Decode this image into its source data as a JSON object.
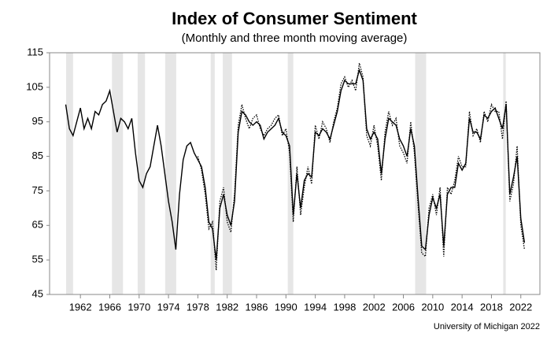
{
  "chart_data": {
    "type": "line",
    "title": "Index of Consumer Sentiment",
    "subtitle": "(Monthly and three month moving average)",
    "source": "University of Michigan 2022",
    "x": [
      1960,
      1960.5,
      1961,
      1961.5,
      1962,
      1962.5,
      1963,
      1963.5,
      1964,
      1964.5,
      1965,
      1965.5,
      1966,
      1966.5,
      1967,
      1967.5,
      1968,
      1968.5,
      1969,
      1969.5,
      1970,
      1970.5,
      1971,
      1971.5,
      1972,
      1972.5,
      1973,
      1973.5,
      1974,
      1974.5,
      1975,
      1975.5,
      1976,
      1976.5,
      1977,
      1977.5,
      1978,
      1978.5,
      1979,
      1979.5,
      1980,
      1980.5,
      1981,
      1981.5,
      1982,
      1982.5,
      1983,
      1983.5,
      1984,
      1984.5,
      1985,
      1985.5,
      1986,
      1986.5,
      1987,
      1987.5,
      1988,
      1988.5,
      1989,
      1989.5,
      1990,
      1990.5,
      1991,
      1991.5,
      1992,
      1992.5,
      1993,
      1993.5,
      1994,
      1994.5,
      1995,
      1995.5,
      1996,
      1996.5,
      1997,
      1997.5,
      1998,
      1998.5,
      1999,
      1999.5,
      2000,
      2000.5,
      2001,
      2001.5,
      2002,
      2002.5,
      2003,
      2003.5,
      2004,
      2004.5,
      2005,
      2005.5,
      2006,
      2006.5,
      2007,
      2007.5,
      2008,
      2008.5,
      2009,
      2009.5,
      2010,
      2010.5,
      2011,
      2011.5,
      2012,
      2012.5,
      2013,
      2013.5,
      2014,
      2014.5,
      2015,
      2015.5,
      2016,
      2016.5,
      2017,
      2017.5,
      2018,
      2018.5,
      2019,
      2019.5,
      2020,
      2020.5,
      2021,
      2021.5,
      2022,
      2022.5
    ],
    "series": [
      {
        "color": "#000000",
        "dash": "dotted",
        "values": [
          null,
          null,
          null,
          null,
          null,
          null,
          null,
          null,
          null,
          null,
          null,
          null,
          null,
          null,
          null,
          null,
          null,
          null,
          null,
          null,
          null,
          null,
          null,
          null,
          null,
          null,
          null,
          null,
          null,
          null,
          null,
          null,
          null,
          null,
          null,
          null,
          85,
          81,
          74,
          64,
          66,
          52,
          72,
          76,
          66,
          63,
          74,
          94,
          100,
          96,
          93,
          96,
          97,
          93,
          91,
          93,
          94,
          96,
          97,
          91,
          93,
          86,
          66,
          82,
          68,
          76,
          82,
          77,
          94,
          90,
          95,
          93,
          89,
          95,
          99,
          106,
          108,
          105,
          107,
          104,
          112,
          108,
          91,
          88,
          94,
          88,
          78,
          92,
          98,
          94,
          96,
          88,
          86,
          83,
          95,
          86,
          71,
          57,
          56,
          70,
          74,
          68,
          76,
          56,
          76,
          74,
          78,
          85,
          82,
          82,
          98,
          91,
          93,
          89,
          98,
          95,
          100,
          98,
          98,
          90,
          101,
          72,
          77,
          88,
          65,
          58
        ]
      },
      {
        "color": "#000000",
        "dash": "solid",
        "values": [
          100,
          93,
          91,
          95,
          99,
          93,
          96,
          93,
          98,
          97,
          100,
          101,
          104,
          98,
          92,
          96,
          95,
          93,
          96,
          86,
          78,
          76,
          80,
          82,
          88,
          94,
          88,
          80,
          72,
          66,
          58,
          74,
          84,
          88,
          89,
          86,
          84,
          82,
          76,
          66,
          64,
          55,
          70,
          74,
          68,
          65,
          72,
          92,
          98,
          97,
          95,
          94,
          95,
          94,
          90,
          92,
          93,
          94,
          96,
          92,
          91,
          88,
          68,
          80,
          70,
          78,
          80,
          79,
          92,
          91,
          93,
          92,
          90,
          94,
          98,
          104,
          107,
          106,
          106,
          106,
          110,
          107,
          93,
          90,
          92,
          90,
          80,
          90,
          96,
          95,
          94,
          90,
          88,
          85,
          93,
          88,
          73,
          59,
          58,
          68,
          73,
          70,
          74,
          59,
          74,
          76,
          76,
          83,
          81,
          83,
          96,
          92,
          92,
          90,
          97,
          96,
          98,
          99,
          96,
          93,
          100,
          74,
          79,
          85,
          67,
          60
        ]
      }
    ],
    "shaded_periods": [
      [
        1960.05,
        1961.0
      ],
      [
        1966.3,
        1967.8
      ],
      [
        1969.8,
        1970.8
      ],
      [
        1973.55,
        1975.05
      ],
      [
        1979.75,
        1980.3
      ],
      [
        1981.4,
        1982.65
      ],
      [
        1990.25,
        1991.0
      ],
      [
        2007.6,
        2009.1
      ],
      [
        2019.6,
        2019.95
      ]
    ],
    "shade_color": "#e6e6e6",
    "xlim": [
      1957.8,
      2024.6
    ],
    "xticks": [
      1962,
      1966,
      1970,
      1974,
      1978,
      1982,
      1986,
      1990,
      1994,
      1998,
      2002,
      2006,
      2010,
      2014,
      2018,
      2022
    ],
    "ylim": [
      45,
      115
    ],
    "yticks": [
      45,
      55,
      65,
      75,
      85,
      95,
      105,
      115
    ]
  }
}
